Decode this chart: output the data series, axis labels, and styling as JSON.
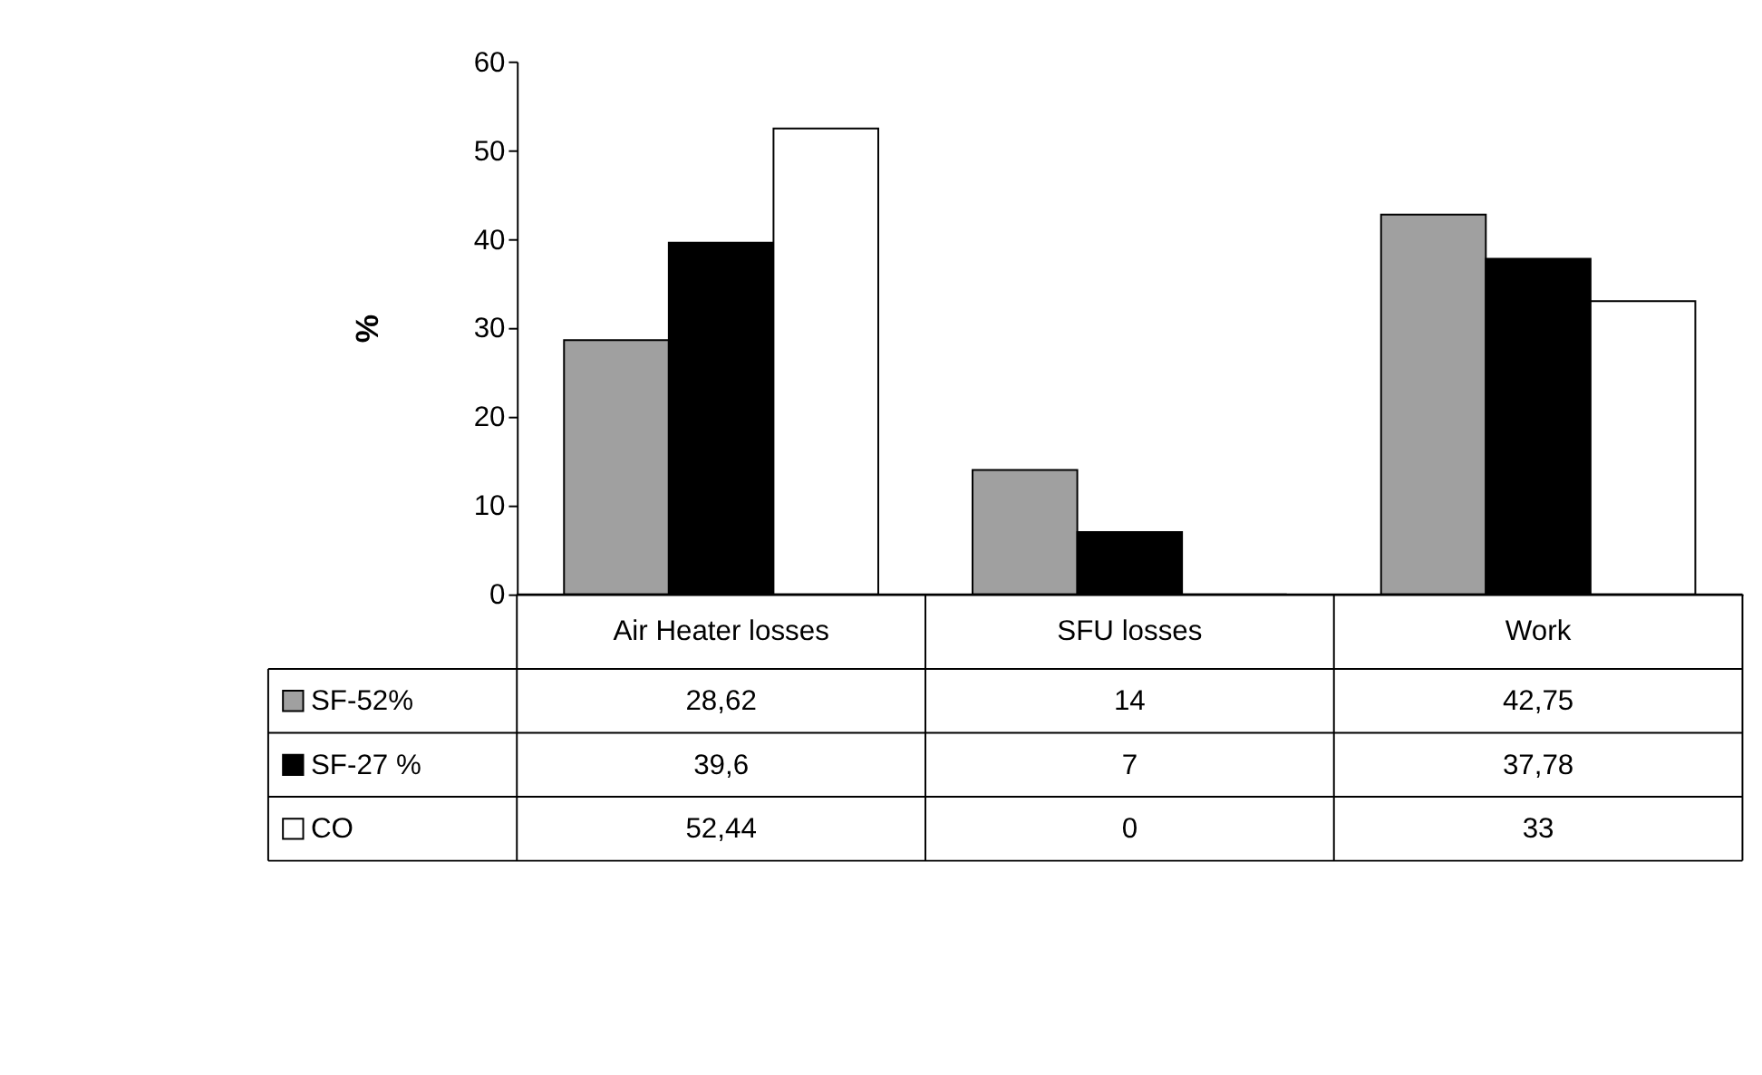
{
  "chart_data": {
    "type": "bar",
    "ylabel": "%",
    "categories": [
      "Air Heater losses",
      "SFU losses",
      "Work"
    ],
    "series": [
      {
        "name": "SF-52%",
        "color": "#a0a0a0",
        "values": [
          28.62,
          14,
          42.75
        ],
        "value_labels": [
          "28,62",
          "14",
          "42,75"
        ]
      },
      {
        "name": "SF-27 %",
        "color": "#000000",
        "values": [
          39.6,
          7,
          37.78
        ],
        "value_labels": [
          "39,6",
          "7",
          "37,78"
        ]
      },
      {
        "name": "CO",
        "color": "#ffffff",
        "values": [
          52.44,
          0,
          33
        ],
        "value_labels": [
          "52,44",
          "0",
          "33"
        ]
      }
    ],
    "ylim": [
      0,
      60
    ],
    "yticks": [
      0,
      10,
      20,
      30,
      40,
      50,
      60
    ],
    "grid": false,
    "legend": "bottom"
  }
}
